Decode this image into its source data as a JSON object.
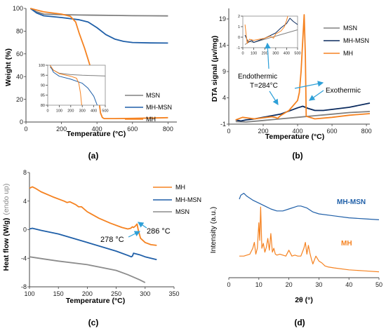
{
  "panel_labels": [
    "(a)",
    "(b)",
    "(c)",
    "(d)"
  ],
  "chart_data": [
    {
      "panel": "a",
      "type": "line",
      "xlabel": "Temperature (°C)",
      "ylabel": "Weight (%)",
      "xlim": [
        0,
        850
      ],
      "ylim": [
        0,
        100
      ],
      "xticks": [
        "0",
        "200",
        "400",
        "600",
        "800"
      ],
      "yticks": [
        "0",
        "20",
        "40",
        "60",
        "80",
        "100"
      ],
      "grid": false,
      "legend_position": "center-right",
      "series": [
        {
          "name": "MSN",
          "color": "#808080",
          "x": [
            25,
            60,
            100,
            200,
            300,
            400,
            500,
            600,
            700,
            800
          ],
          "y": [
            100,
            97,
            95,
            94.5,
            94.2,
            94,
            93.8,
            93.6,
            93.5,
            93.4
          ]
        },
        {
          "name": "MH-MSN",
          "color": "#1f5fa8",
          "x": [
            25,
            60,
            100,
            200,
            300,
            350,
            400,
            450,
            500,
            550,
            600,
            700,
            800
          ],
          "y": [
            100,
            96,
            93.5,
            92,
            90,
            88,
            83,
            77,
            73,
            71,
            70,
            69.6,
            69.5
          ]
        },
        {
          "name": "MH",
          "color": "#f58220",
          "x": [
            25,
            50,
            100,
            200,
            250,
            280,
            300,
            330,
            360,
            390,
            410,
            420,
            430,
            440,
            500,
            600,
            700,
            800
          ],
          "y": [
            100,
            99,
            97,
            95,
            93,
            88,
            78,
            65,
            50,
            35,
            20,
            8,
            4,
            3,
            3,
            3.2,
            3.5,
            3.8
          ]
        }
      ],
      "inset": {
        "xlim": [
          0,
          500
        ],
        "ylim": [
          80,
          100
        ],
        "xticks": [
          "0",
          "100",
          "200",
          "300",
          "400",
          "500"
        ],
        "yticks": [
          "80",
          "85",
          "90",
          "95",
          "100"
        ],
        "series": [
          {
            "name": "MSN",
            "color": "#808080",
            "x": [
              20,
              50,
              100,
              200,
              300,
              400,
              500
            ],
            "y": [
              99,
              97.5,
              96,
              95.3,
              95,
              94.8,
              94.6
            ]
          },
          {
            "name": "MH-MSN",
            "color": "#1f5fa8",
            "x": [
              20,
              50,
              100,
              200,
              300,
              350,
              400,
              430
            ],
            "y": [
              100,
              96.5,
              94.5,
              93,
              91,
              88.5,
              84.5,
              80
            ]
          },
          {
            "name": "MH",
            "color": "#f58220",
            "x": [
              20,
              50,
              100,
              200,
              250,
              270,
              285,
              295
            ],
            "y": [
              100,
              97.5,
              95.8,
              94.5,
              93.5,
              91,
              86,
              80
            ]
          }
        ]
      }
    },
    {
      "panel": "b",
      "type": "line",
      "xlabel": "Temperature (°C)",
      "ylabel": "DTA signal (μv/mg)",
      "xlim": [
        0,
        820
      ],
      "ylim": [
        -1,
        21
      ],
      "xticks": [
        "0",
        "200",
        "400",
        "600",
        "800"
      ],
      "yticks": [
        "-1",
        "4",
        "9",
        "14",
        "19"
      ],
      "grid": false,
      "legend_position": "top-right",
      "annotations": [
        "Endothermic",
        "T=284°C",
        "Exothermic"
      ],
      "series": [
        {
          "name": "MSN",
          "color": "#808080",
          "x": [
            40,
            100,
            200,
            300,
            400,
            500,
            600,
            700,
            820
          ],
          "y": [
            -0.5,
            -0.6,
            -0.3,
            0,
            0.3,
            0.6,
            0.9,
            1.2,
            1.4
          ]
        },
        {
          "name": "MH-MSN",
          "color": "#0a2a5e",
          "x": [
            40,
            70,
            100,
            150,
            200,
            250,
            300,
            350,
            400,
            430,
            460,
            500,
            550,
            600,
            700,
            820
          ],
          "y": [
            -0.2,
            -0.4,
            -0.2,
            0,
            0.3,
            0.6,
            0.9,
            1.5,
            2.1,
            2.4,
            2.0,
            1.6,
            1.6,
            1.8,
            2.2,
            3.0
          ]
        },
        {
          "name": "MH",
          "color": "#f58220",
          "x": [
            40,
            80,
            150,
            200,
            250,
            270,
            284,
            300,
            350,
            400,
            410,
            420,
            430,
            438,
            445,
            450,
            500,
            600,
            700,
            820
          ],
          "y": [
            -0.2,
            0.3,
            0,
            0.2,
            0.4,
            0.3,
            0.1,
            0.6,
            1.6,
            3.5,
            5,
            9,
            15,
            19.8,
            12,
            0.5,
            0,
            0.3,
            0.7,
            1.0
          ]
        }
      ],
      "inset": {
        "xlim": [
          0,
          500
        ],
        "ylim": [
          -1,
          2
        ],
        "xticks": [
          "0",
          "100",
          "200",
          "300",
          "400",
          "500"
        ],
        "yticks": [
          "-1",
          "0",
          "1",
          "2"
        ],
        "series": [
          {
            "name": "MSN",
            "color": "#808080",
            "x": [
              20,
              60,
              100,
              200,
              300,
              400,
              500
            ],
            "y": [
              -0.7,
              -0.4,
              -0.5,
              -0.2,
              0.1,
              0.4,
              0.7
            ]
          },
          {
            "name": "MH-MSN",
            "color": "#0a2a5e",
            "x": [
              20,
              50,
              80,
              100,
              200,
              300,
              350,
              400,
              430,
              460,
              500
            ],
            "y": [
              0.2,
              -0.5,
              -0.3,
              -0.5,
              -0.1,
              0.4,
              0.9,
              1.3,
              1.8,
              1.5,
              1.2
            ]
          },
          {
            "name": "MH",
            "color": "#f58220",
            "x": [
              20,
              40,
              60,
              100,
              200,
              250,
              280,
              300,
              350,
              380,
              400,
              410
            ],
            "y": [
              1.2,
              -0.6,
              -0.2,
              -0.3,
              -0.1,
              0.1,
              -0.1,
              0.3,
              0.6,
              1.0,
              1.6,
              2.2
            ]
          }
        ]
      }
    },
    {
      "panel": "c",
      "type": "line",
      "xlabel": "Temperature (°C)",
      "ylabel": "Heat flow (W/g)",
      "ylabel_note": "(endo up)",
      "xlim": [
        100,
        350
      ],
      "ylim": [
        -8,
        8
      ],
      "xticks": [
        "100",
        "150",
        "200",
        "250",
        "300",
        "350"
      ],
      "yticks": [
        "-8",
        "-4",
        "0",
        "4",
        "8"
      ],
      "grid": false,
      "legend_position": "top-right",
      "annotations": [
        "278 °C",
        "286 °C"
      ],
      "series": [
        {
          "name": "MH",
          "color": "#f58220",
          "x": [
            100,
            105,
            110,
            120,
            140,
            160,
            165,
            170,
            180,
            185,
            190,
            200,
            220,
            240,
            260,
            270,
            275,
            278,
            280,
            283,
            286,
            288,
            292,
            300,
            310,
            320
          ],
          "y": [
            5.8,
            6,
            5.8,
            5.3,
            4.6,
            4.0,
            3.8,
            3.9,
            3.5,
            3.2,
            3.2,
            2.5,
            1.6,
            0.9,
            0.3,
            0.1,
            0.2,
            0.4,
            0.3,
            0.5,
            0.8,
            0.0,
            -1.2,
            -1.8,
            -2.1,
            -2.2
          ]
        },
        {
          "name": "MH-MSN",
          "color": "#1f5fa8",
          "x": [
            100,
            105,
            120,
            150,
            200,
            250,
            270,
            276,
            278,
            280,
            290,
            300,
            320
          ],
          "y": [
            0.1,
            0.2,
            -0.1,
            -0.6,
            -1.8,
            -3.0,
            -3.6,
            -3.8,
            -3.7,
            -3.3,
            -3.5,
            -3.8,
            -4.2
          ]
        },
        {
          "name": "MSN",
          "color": "#8c8c8c",
          "x": [
            100,
            125,
            150,
            200,
            250,
            270,
            290,
            300
          ],
          "y": [
            -3.8,
            -4.1,
            -4.4,
            -4.9,
            -5.7,
            -6.3,
            -7.0,
            -7.4
          ]
        }
      ]
    },
    {
      "panel": "d",
      "type": "line",
      "xlabel": "2θ (°)",
      "ylabel": "Intensity (a.u.)",
      "xlim": [
        0,
        50
      ],
      "ylim": [
        0,
        100
      ],
      "xticks": [
        "0",
        "10",
        "20",
        "30",
        "40",
        "50"
      ],
      "yticks": [],
      "grid": false,
      "legend_position": "inline",
      "series": [
        {
          "name": "MH-MSN",
          "color": "#1f5fa8",
          "x": [
            3.5,
            4,
            5,
            6,
            8,
            10,
            12,
            14,
            16,
            18,
            20,
            22,
            23,
            24,
            26,
            28,
            30,
            35,
            40,
            45,
            50
          ],
          "y": [
            80,
            84,
            86,
            83,
            79,
            76,
            73,
            70,
            68,
            68,
            70,
            72,
            73,
            73,
            71,
            67,
            65,
            63,
            61,
            60,
            59
          ]
        },
        {
          "name": "MH",
          "color": "#f58220",
          "x": [
            3.5,
            5,
            6,
            7,
            8,
            8.5,
            9,
            9.5,
            10,
            10.3,
            10.6,
            11,
            11.5,
            12,
            12.5,
            13,
            13.5,
            14,
            14.5,
            15,
            15.5,
            16,
            17,
            18,
            19,
            20,
            21,
            22,
            23,
            24,
            25,
            25.5,
            26,
            26.5,
            27,
            27.5,
            28,
            29,
            30,
            31,
            32,
            33,
            35,
            40,
            45,
            50
          ],
          "y": [
            22,
            22,
            23,
            24,
            30,
            36,
            24,
            30,
            56,
            38,
            72,
            30,
            35,
            26,
            31,
            40,
            28,
            45,
            26,
            30,
            24,
            23,
            24,
            23,
            22,
            28,
            22,
            23,
            22,
            22,
            30,
            36,
            24,
            33,
            25,
            19,
            14,
            22,
            17,
            15,
            12,
            11,
            10,
            8,
            7,
            6
          ]
        }
      ]
    }
  ],
  "legends": {
    "a": [
      "MSN",
      "MH-MSN",
      "MH"
    ],
    "b": [
      "MSN",
      "MH-MSN",
      "MH"
    ],
    "c": [
      "MH",
      "MH-MSN",
      "MSN"
    ],
    "d": [
      "MH-MSN",
      "MH"
    ]
  }
}
